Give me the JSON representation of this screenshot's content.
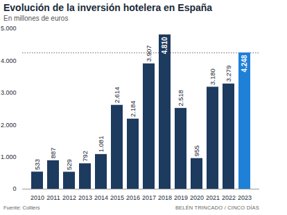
{
  "chart_data": {
    "type": "bar",
    "title": "Evolución de la inversión hotelera en España",
    "subtitle": "En millones de euros",
    "source": "Fuente: Colliers",
    "credit": "BELÉN TRINCADO / CINCO DÍAS",
    "categories": [
      "2010",
      "2011",
      "2012",
      "2013",
      "2014",
      "2015",
      "2016",
      "2017",
      "2018",
      "2019",
      "2020",
      "2021",
      "2022",
      "2023"
    ],
    "values": [
      533,
      887,
      529,
      792,
      1081,
      2614,
      2184,
      3907,
      4810,
      2518,
      955,
      3180,
      3279,
      4248
    ],
    "value_labels": [
      "533",
      "887",
      "529",
      "792",
      "1.081",
      "2.614",
      "2.184",
      "3.907",
      "4.810",
      "2.518",
      "955",
      "3.180",
      "3.279",
      "4.248"
    ],
    "colors": [
      "#1d3a5f",
      "#1d3a5f",
      "#1d3a5f",
      "#1d3a5f",
      "#1d3a5f",
      "#1d3a5f",
      "#1d3a5f",
      "#1d3a5f",
      "#1d3a5f",
      "#1d3a5f",
      "#1d3a5f",
      "#1d3a5f",
      "#1d3a5f",
      "#1f80d8"
    ],
    "ylim": [
      0,
      5000
    ],
    "yticks": [
      0,
      {
        "value": 1000,
        "label": "1.000"
      },
      {
        "value": 2000,
        "label": "2.000"
      },
      {
        "value": 3000,
        "label": "3.000"
      },
      {
        "value": 4000,
        "label": "4.000"
      },
      {
        "value": 5000,
        "label": "5.000"
      }
    ],
    "grid": false,
    "data_labels": true
  }
}
